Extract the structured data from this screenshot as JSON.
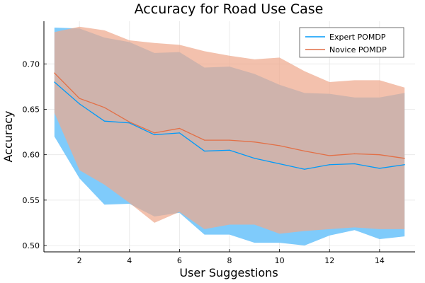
{
  "chart_data": {
    "type": "line",
    "title": "Accuracy for Road Use Case",
    "xlabel": "User Suggestions",
    "ylabel": "Accuracy",
    "xlim": [
      0.58,
      15.42
    ],
    "ylim": [
      0.493,
      0.747
    ],
    "xticks": [
      2,
      4,
      6,
      8,
      10,
      12,
      14
    ],
    "yticks": [
      0.5,
      0.55,
      0.6,
      0.65,
      0.7
    ],
    "grid": true,
    "legend_position": "top-right",
    "x": [
      1,
      2,
      3,
      4,
      5,
      6,
      7,
      8,
      9,
      10,
      11,
      12,
      13,
      14,
      15
    ],
    "series": [
      {
        "name": "Expert POMDP",
        "color": "#009af9",
        "band_color": "#7fcbfb",
        "values": [
          0.68,
          0.656,
          0.637,
          0.635,
          0.622,
          0.624,
          0.604,
          0.605,
          0.596,
          0.59,
          0.584,
          0.589,
          0.59,
          0.585,
          0.589
        ],
        "band_upper": [
          0.74,
          0.739,
          0.729,
          0.724,
          0.712,
          0.713,
          0.696,
          0.697,
          0.689,
          0.677,
          0.668,
          0.667,
          0.663,
          0.663,
          0.668
        ],
        "band_lower": [
          0.62,
          0.574,
          0.545,
          0.546,
          0.532,
          0.536,
          0.512,
          0.512,
          0.503,
          0.503,
          0.5,
          0.511,
          0.517,
          0.507,
          0.51
        ]
      },
      {
        "name": "Novice POMDP",
        "color": "#e26f46",
        "band_color": "#efa98e",
        "values": [
          0.69,
          0.662,
          0.652,
          0.636,
          0.624,
          0.629,
          0.616,
          0.616,
          0.614,
          0.61,
          0.604,
          0.599,
          0.601,
          0.6,
          0.596
        ],
        "band_upper": [
          0.735,
          0.741,
          0.737,
          0.726,
          0.723,
          0.721,
          0.714,
          0.709,
          0.705,
          0.707,
          0.692,
          0.68,
          0.682,
          0.682,
          0.674
        ],
        "band_lower": [
          0.646,
          0.583,
          0.567,
          0.547,
          0.525,
          0.537,
          0.518,
          0.523,
          0.523,
          0.513,
          0.516,
          0.518,
          0.52,
          0.518,
          0.518
        ]
      }
    ]
  }
}
